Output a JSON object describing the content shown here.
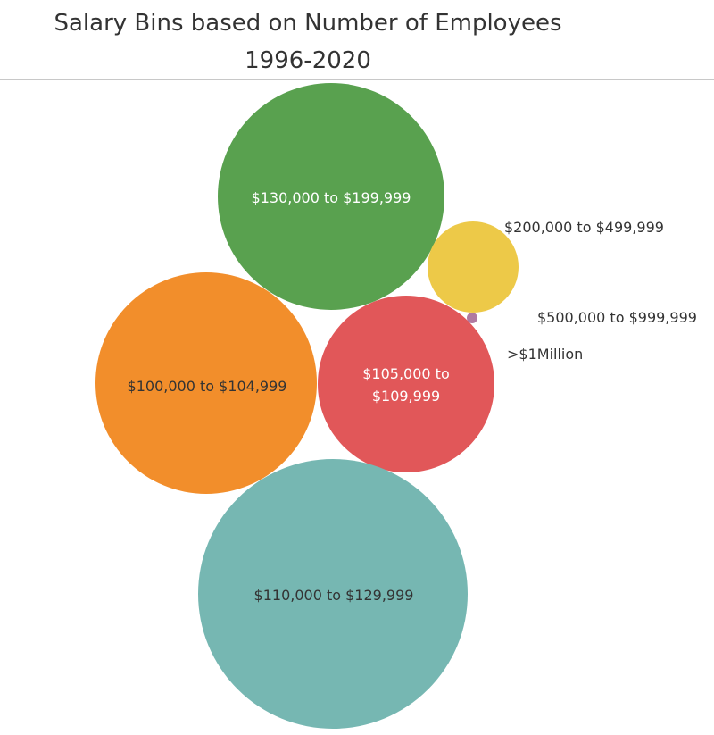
{
  "title": {
    "line1": "Salary Bins based on Number of Employees",
    "line2": "1996-2020"
  },
  "chart_data": {
    "type": "packed-bubble",
    "bubbles": [
      {
        "name": "$130,000 to $199,999",
        "label_lines": [
          "$130,000 to $199,999"
        ],
        "relative_size": 0.7,
        "color": "#59a14f",
        "label_color": "#ffffff",
        "label_position": "inside"
      },
      {
        "name": "$200,000 to $499,999",
        "label_lines": [
          "$200,000 to $499,999"
        ],
        "relative_size": 0.11,
        "color": "#edc948",
        "label_color": "#333333",
        "label_position": "outside"
      },
      {
        "name": "$500,000 to $999,999",
        "label_lines": [
          "$500,000 to $999,999"
        ],
        "relative_size": 0.0013,
        "color": "#b07aa1",
        "label_color": "#333333",
        "label_position": "outside"
      },
      {
        "name": ">$1Million",
        "label_lines": [
          ">$1Million"
        ],
        "relative_size": 0.0,
        "color": "#b07aa1",
        "label_color": "#333333",
        "label_position": "outside"
      },
      {
        "name": "$105,000 to $109,999",
        "label_lines": [
          "$105,000 to",
          "$109,999"
        ],
        "relative_size": 0.43,
        "color": "#e15759",
        "label_color": "#ffffff",
        "label_position": "inside"
      },
      {
        "name": "$100,000 to $104,999",
        "label_lines": [
          "$100,000 to $104,999"
        ],
        "relative_size": 0.67,
        "color": "#f28e2b",
        "label_color": "#333333",
        "label_position": "inside"
      },
      {
        "name": "$110,000 to $129,999",
        "label_lines": [
          "$110,000 to $129,999"
        ],
        "relative_size": 1.0,
        "color": "#76b7b2",
        "label_color": "#333333",
        "label_position": "inside"
      }
    ]
  }
}
